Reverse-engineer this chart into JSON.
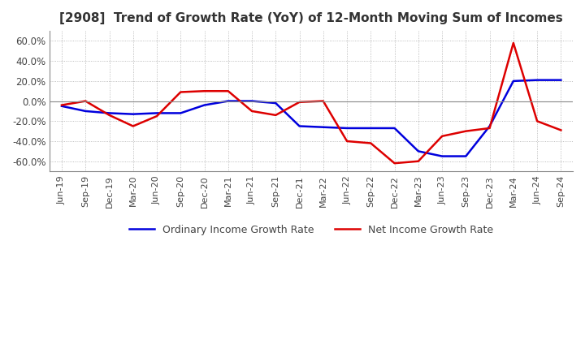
{
  "title": "[2908]  Trend of Growth Rate (YoY) of 12-Month Moving Sum of Incomes",
  "title_fontsize": 11,
  "ylim": [
    -0.7,
    0.7
  ],
  "yticks": [
    -0.6,
    -0.4,
    -0.2,
    0.0,
    0.2,
    0.4,
    0.6
  ],
  "background_color": "#ffffff",
  "grid_color": "#aaaaaa",
  "ordinary_color": "#0000dd",
  "net_color": "#dd0000",
  "legend_ordinary": "Ordinary Income Growth Rate",
  "legend_net": "Net Income Growth Rate",
  "x_labels": [
    "Jun-19",
    "Sep-19",
    "Dec-19",
    "Mar-20",
    "Jun-20",
    "Sep-20",
    "Dec-20",
    "Mar-21",
    "Jun-21",
    "Sep-21",
    "Dec-21",
    "Mar-22",
    "Jun-22",
    "Sep-22",
    "Dec-22",
    "Mar-23",
    "Jun-23",
    "Sep-23",
    "Dec-23",
    "Mar-24",
    "Jun-24",
    "Sep-24"
  ],
  "ordinary_income": [
    -0.05,
    -0.1,
    -0.12,
    -0.13,
    -0.12,
    -0.12,
    -0.04,
    0.0,
    0.0,
    -0.02,
    -0.25,
    -0.26,
    -0.27,
    -0.27,
    -0.27,
    -0.5,
    -0.55,
    -0.55,
    -0.25,
    0.2,
    0.21,
    0.21
  ],
  "net_income": [
    -0.04,
    0.0,
    -0.14,
    -0.25,
    -0.15,
    0.09,
    0.1,
    0.1,
    -0.1,
    -0.14,
    -0.01,
    0.0,
    -0.4,
    -0.42,
    -0.62,
    -0.6,
    -0.35,
    -0.3,
    -0.27,
    0.58,
    -0.2,
    -0.29
  ]
}
